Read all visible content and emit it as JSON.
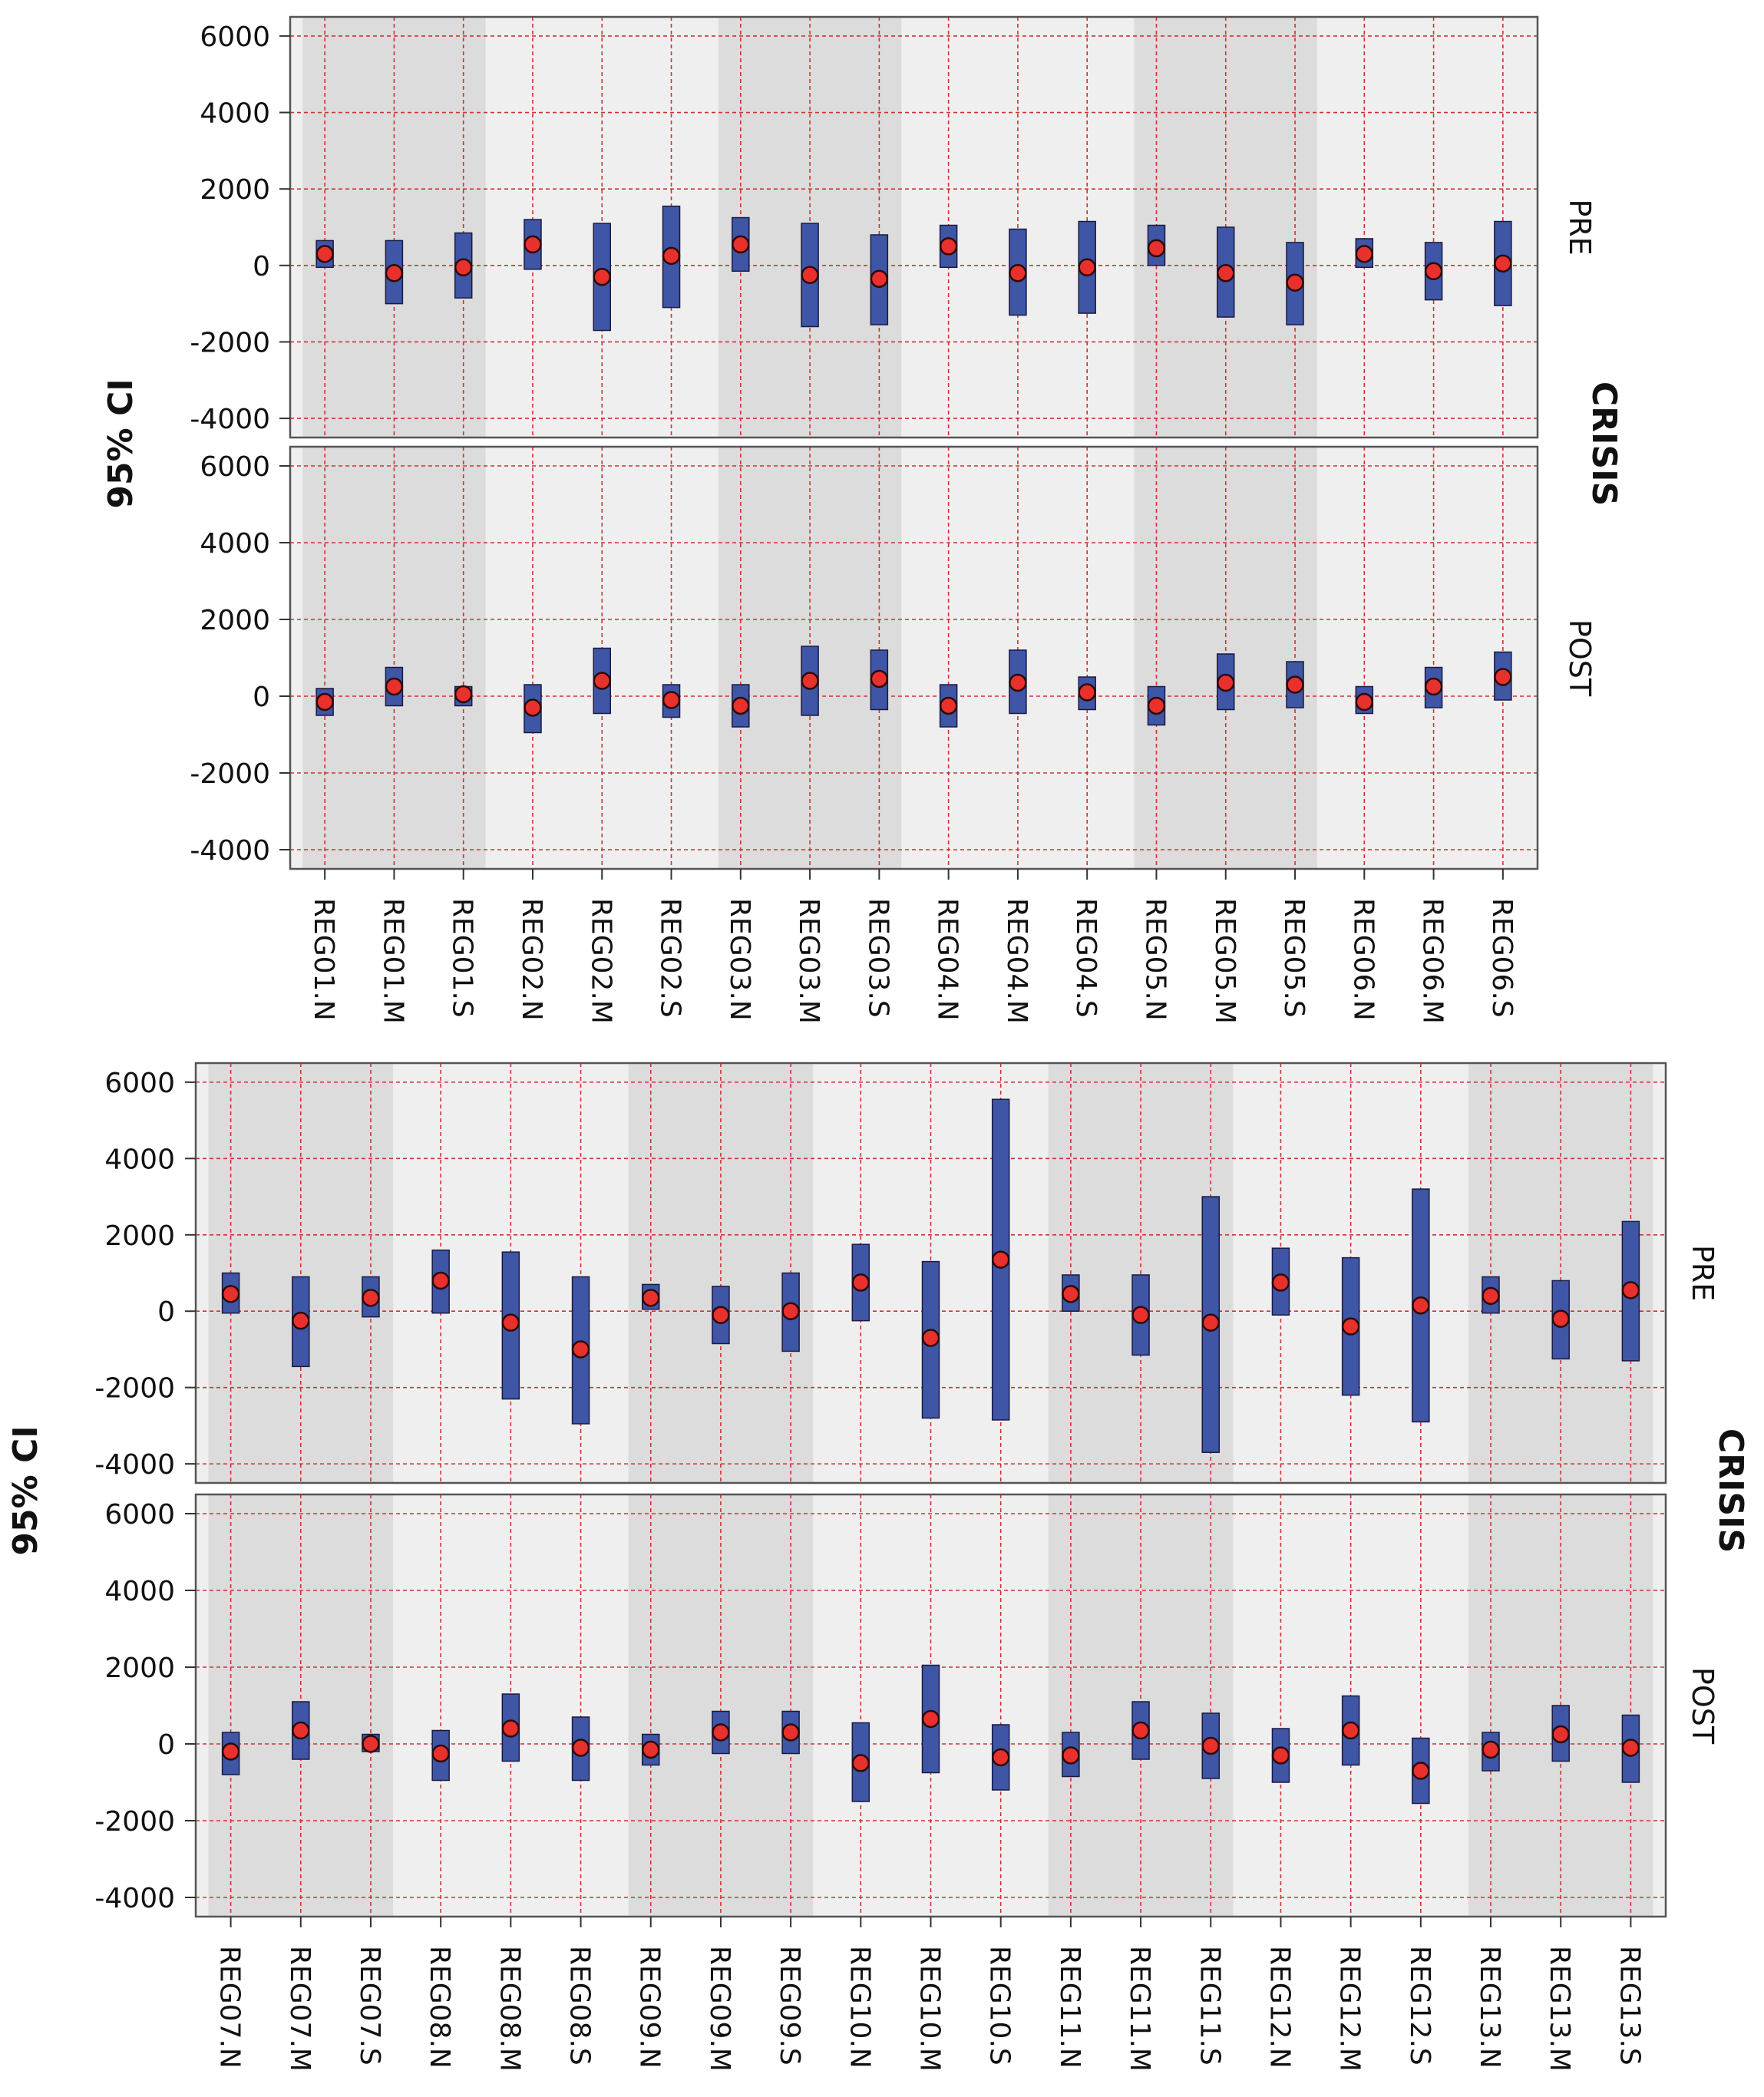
{
  "colors": {
    "panel_bg": "#efefef",
    "band_dark": "#dcdcdc",
    "grid": "#cc3333",
    "bar": "#3f55a6",
    "bar_edge": "#1a1a40",
    "point": "#e8302c",
    "point_edge": "#2a0a0a"
  },
  "chart_data": [
    {
      "type": "error-bar",
      "ylabel": "95% CI",
      "facet_label": "CRISIS",
      "ylim": [
        -4500,
        6500
      ],
      "yticks": [
        -4000,
        -2000,
        0,
        2000,
        4000,
        6000
      ],
      "categories": [
        "REG01.N",
        "REG01.M",
        "REG01.S",
        "REG02.N",
        "REG02.M",
        "REG02.S",
        "REG03.N",
        "REG03.M",
        "REG03.S",
        "REG04.N",
        "REG04.M",
        "REG04.S",
        "REG05.N",
        "REG05.M",
        "REG05.S",
        "REG06.N",
        "REG06.M",
        "REG06.S"
      ],
      "panels": [
        {
          "label": "PRE",
          "mean": [
            300,
            -200,
            -50,
            550,
            -300,
            250,
            550,
            -250,
            -350,
            500,
            -200,
            -50,
            450,
            -200,
            -450,
            300,
            -150,
            50
          ],
          "lower": [
            -50,
            -1000,
            -850,
            -100,
            -1700,
            -1100,
            -150,
            -1600,
            -1550,
            -50,
            -1300,
            -1250,
            0,
            -1350,
            -1550,
            -50,
            -900,
            -1050
          ],
          "upper": [
            650,
            650,
            850,
            1200,
            1100,
            1550,
            1250,
            1100,
            800,
            1050,
            950,
            1150,
            1050,
            1000,
            600,
            700,
            600,
            1150
          ]
        },
        {
          "label": "POST",
          "mean": [
            -150,
            250,
            50,
            -300,
            400,
            -100,
            -250,
            400,
            450,
            -250,
            350,
            100,
            -250,
            350,
            300,
            -150,
            250,
            500
          ],
          "lower": [
            -500,
            -250,
            -250,
            -950,
            -450,
            -550,
            -800,
            -500,
            -350,
            -800,
            -450,
            -350,
            -750,
            -350,
            -300,
            -450,
            -300,
            -100
          ],
          "upper": [
            200,
            750,
            250,
            300,
            1250,
            300,
            300,
            1300,
            1200,
            300,
            1200,
            500,
            250,
            1100,
            900,
            250,
            750,
            1150
          ]
        }
      ]
    },
    {
      "type": "error-bar",
      "ylabel": "95% CI",
      "facet_label": "CRISIS",
      "ylim": [
        -4500,
        6500
      ],
      "yticks": [
        -4000,
        -2000,
        0,
        2000,
        4000,
        6000
      ],
      "categories": [
        "REG07.N",
        "REG07.M",
        "REG07.S",
        "REG08.N",
        "REG08.M",
        "REG08.S",
        "REG09.N",
        "REG09.M",
        "REG09.S",
        "REG10.N",
        "REG10.M",
        "REG10.S",
        "REG11.N",
        "REG11.M",
        "REG11.S",
        "REG12.N",
        "REG12.M",
        "REG12.S",
        "REG13.N",
        "REG13.M",
        "REG13.S"
      ],
      "panels": [
        {
          "label": "PRE",
          "mean": [
            450,
            -250,
            350,
            800,
            -300,
            -1000,
            350,
            -100,
            0,
            750,
            -700,
            1350,
            450,
            -100,
            -300,
            750,
            -400,
            150,
            400,
            -200,
            550
          ],
          "lower": [
            -50,
            -1450,
            -150,
            -50,
            -2300,
            -2950,
            50,
            -850,
            -1050,
            -250,
            -2800,
            -2850,
            0,
            -1150,
            -3700,
            -100,
            -2200,
            -2900,
            -50,
            -1250,
            -1300
          ],
          "upper": [
            1000,
            900,
            900,
            1600,
            1550,
            900,
            700,
            650,
            1000,
            1750,
            1300,
            5550,
            950,
            950,
            3000,
            1650,
            1400,
            3200,
            900,
            800,
            2350
          ]
        },
        {
          "label": "POST",
          "mean": [
            -200,
            350,
            0,
            -250,
            400,
            -100,
            -150,
            300,
            300,
            -500,
            650,
            -350,
            -300,
            350,
            -50,
            -300,
            350,
            -700,
            -150,
            250,
            -100
          ],
          "lower": [
            -800,
            -400,
            -200,
            -950,
            -450,
            -950,
            -550,
            -250,
            -250,
            -1500,
            -750,
            -1200,
            -850,
            -400,
            -900,
            -1000,
            -550,
            -1550,
            -700,
            -450,
            -1000
          ],
          "upper": [
            300,
            1100,
            250,
            350,
            1300,
            700,
            250,
            850,
            850,
            550,
            2050,
            500,
            300,
            1100,
            800,
            400,
            1250,
            150,
            300,
            1000,
            750
          ]
        }
      ]
    }
  ]
}
